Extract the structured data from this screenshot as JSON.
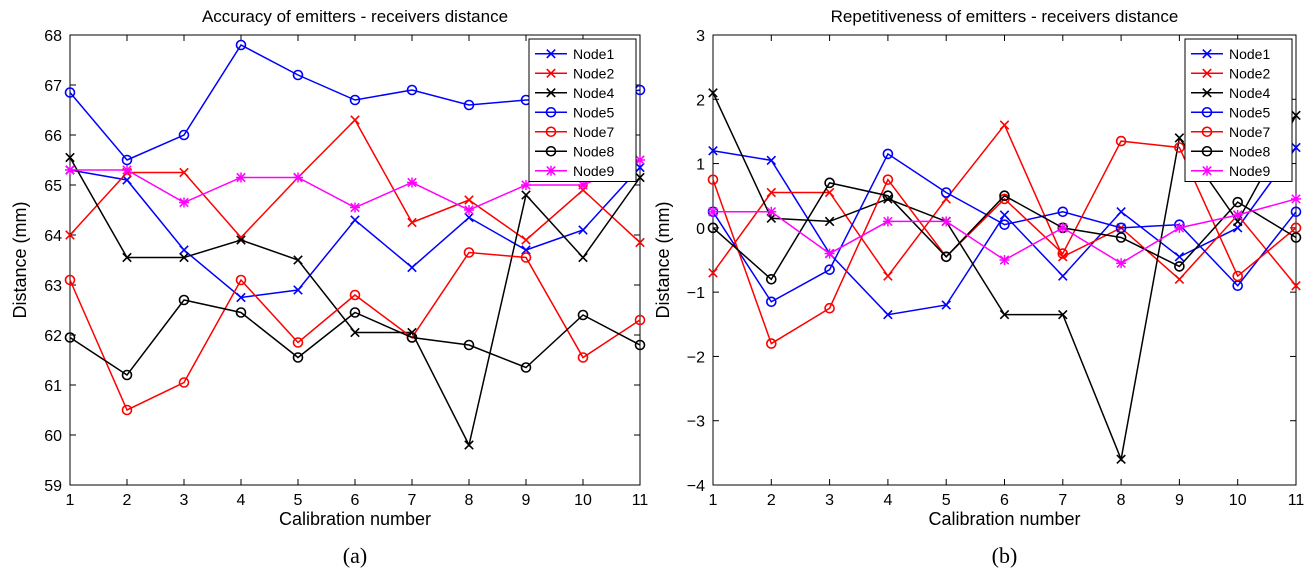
{
  "chart_data": [
    {
      "type": "line",
      "title": "Accuracy of emitters - receivers distance",
      "xlabel": "Calibration number",
      "ylabel": "Distance (mm)",
      "caption": "(a)",
      "x": [
        1,
        2,
        3,
        4,
        5,
        6,
        7,
        8,
        9,
        10,
        11
      ],
      "xlim": [
        1,
        11
      ],
      "ylim": [
        59,
        68
      ],
      "xticks": [
        "1",
        "2",
        "3",
        "4",
        "5",
        "6",
        "7",
        "8",
        "9",
        "10",
        "11"
      ],
      "yticks": [
        "59",
        "60",
        "61",
        "62",
        "63",
        "64",
        "65",
        "66",
        "67",
        "68"
      ],
      "grid": false,
      "legend_position": "top-right",
      "series": [
        {
          "name": "Node1",
          "color": "#0000ff",
          "marker": "x",
          "values": [
            65.3,
            65.1,
            63.7,
            62.75,
            62.9,
            64.3,
            63.35,
            64.35,
            63.7,
            64.1,
            65.35
          ]
        },
        {
          "name": "Node2",
          "color": "#ff0000",
          "marker": "x",
          "values": [
            64.0,
            65.25,
            65.25,
            63.95,
            65.15,
            66.3,
            64.25,
            64.7,
            63.9,
            64.9,
            63.85
          ]
        },
        {
          "name": "Node4",
          "color": "#000000",
          "marker": "x",
          "values": [
            65.55,
            63.55,
            63.55,
            63.9,
            63.5,
            62.05,
            62.05,
            59.8,
            64.8,
            63.55,
            65.15
          ]
        },
        {
          "name": "Node5",
          "color": "#0000ff",
          "marker": "o",
          "values": [
            66.85,
            65.5,
            66.0,
            67.8,
            67.2,
            66.7,
            66.9,
            66.6,
            66.7,
            66.7,
            66.9
          ]
        },
        {
          "name": "Node7",
          "color": "#ff0000",
          "marker": "o",
          "values": [
            63.1,
            60.5,
            61.05,
            63.1,
            61.85,
            62.8,
            61.95,
            63.65,
            63.55,
            61.55,
            62.3
          ]
        },
        {
          "name": "Node8",
          "color": "#000000",
          "marker": "o",
          "values": [
            61.95,
            61.2,
            62.7,
            62.45,
            61.55,
            62.45,
            61.95,
            61.8,
            61.35,
            62.4,
            61.8
          ]
        },
        {
          "name": "Node9",
          "color": "#ff00ff",
          "marker": "*",
          "values": [
            65.3,
            65.3,
            64.65,
            65.15,
            65.15,
            64.55,
            65.05,
            64.5,
            65.0,
            65.0,
            65.5
          ]
        }
      ]
    },
    {
      "type": "line",
      "title": "Repetitiveness of emitters - receivers distance",
      "xlabel": "Calibration number",
      "ylabel": "Distance (mm)",
      "caption": "(b)",
      "x": [
        1,
        2,
        3,
        4,
        5,
        6,
        7,
        8,
        9,
        10,
        11
      ],
      "xlim": [
        1,
        11
      ],
      "ylim": [
        -4,
        3
      ],
      "xticks": [
        "1",
        "2",
        "3",
        "4",
        "5",
        "6",
        "7",
        "8",
        "9",
        "10",
        "11"
      ],
      "yticks": [
        "−4",
        "−3",
        "−2",
        "−1",
        "0",
        "1",
        "2",
        "3"
      ],
      "grid": false,
      "legend_position": "top-right",
      "series": [
        {
          "name": "Node1",
          "color": "#0000ff",
          "marker": "x",
          "values": [
            1.2,
            1.05,
            -0.4,
            -1.35,
            -1.2,
            0.2,
            -0.75,
            0.25,
            -0.45,
            0.0,
            1.25
          ]
        },
        {
          "name": "Node2",
          "color": "#ff0000",
          "marker": "x",
          "values": [
            -0.7,
            0.55,
            0.55,
            -0.75,
            0.45,
            1.6,
            -0.45,
            0.0,
            -0.8,
            0.2,
            -0.9
          ]
        },
        {
          "name": "Node4",
          "color": "#000000",
          "marker": "x",
          "values": [
            2.1,
            0.15,
            0.1,
            0.45,
            0.1,
            -1.35,
            -1.35,
            -3.6,
            1.4,
            0.1,
            1.75
          ]
        },
        {
          "name": "Node5",
          "color": "#0000ff",
          "marker": "o",
          "values": [
            0.25,
            -1.15,
            -0.65,
            1.15,
            0.55,
            0.05,
            0.25,
            0.0,
            0.05,
            -0.9,
            0.25
          ]
        },
        {
          "name": "Node7",
          "color": "#ff0000",
          "marker": "o",
          "values": [
            0.75,
            -1.8,
            -1.25,
            0.75,
            -0.45,
            0.45,
            -0.4,
            1.35,
            1.25,
            -0.75,
            0.0
          ]
        },
        {
          "name": "Node8",
          "color": "#000000",
          "marker": "o",
          "values": [
            0.0,
            -0.8,
            0.7,
            0.5,
            -0.45,
            0.5,
            0.0,
            -0.15,
            -0.6,
            0.4,
            -0.15
          ]
        },
        {
          "name": "Node9",
          "color": "#ff00ff",
          "marker": "*",
          "values": [
            0.25,
            0.25,
            -0.4,
            0.1,
            0.1,
            -0.5,
            0.0,
            -0.55,
            0.0,
            0.2,
            0.45
          ]
        }
      ]
    }
  ]
}
